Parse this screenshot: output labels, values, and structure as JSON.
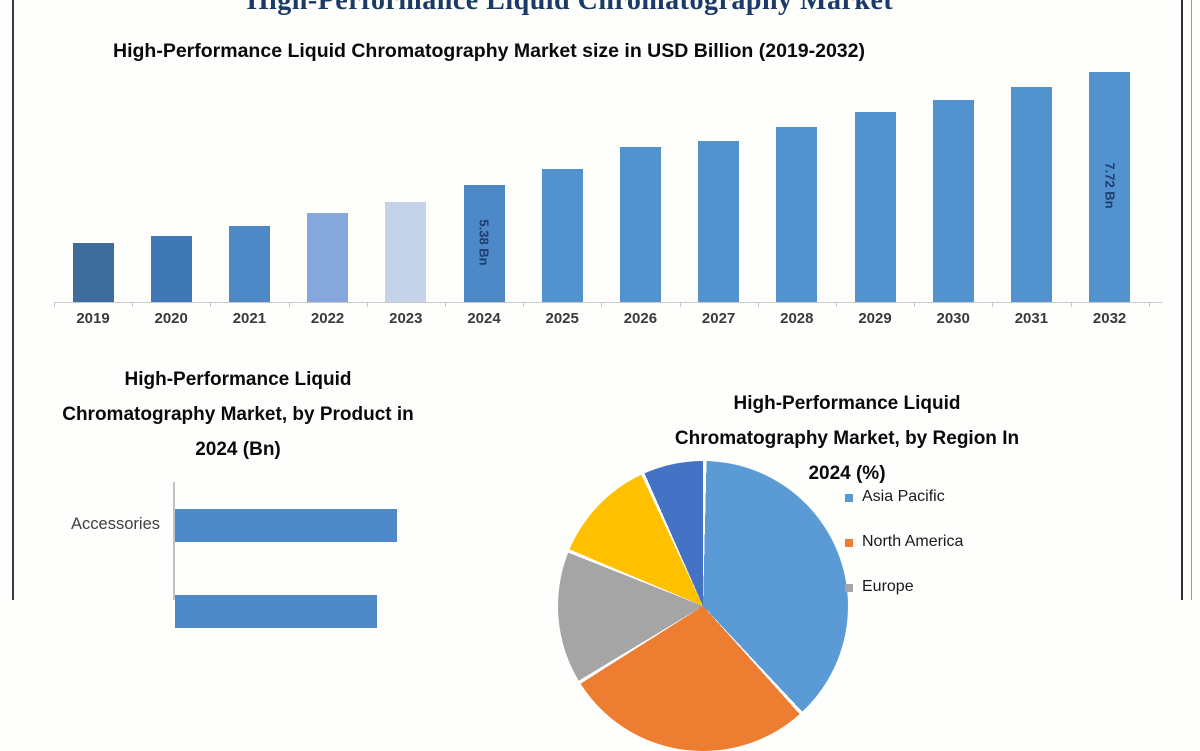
{
  "page": {
    "main_heading": "High-Performance Liquid Chromatography Market"
  },
  "main_chart": {
    "title": "High-Performance Liquid Chromatography Market size in USD Billion (2019-2032)"
  },
  "product_chart": {
    "title_line1": "High-Performance Liquid",
    "title_line2": "Chromatography Market, by Product in",
    "title_line3": "2024 (Bn)",
    "category_label": "Accessories"
  },
  "region_chart": {
    "title_line1": "High-Performance Liquid",
    "title_line2": "Chromatography Market, by Region In",
    "title_line3": "2024 (%)"
  },
  "chart_data": [
    {
      "type": "bar",
      "title": "High-Performance Liquid Chromatography Market size in USD Billion (2019-2032)",
      "categories": [
        "2019",
        "2020",
        "2021",
        "2022",
        "2023",
        "2024",
        "2025",
        "2026",
        "2027",
        "2028",
        "2029",
        "2030",
        "2031",
        "2032"
      ],
      "values": [
        4.18,
        4.32,
        4.53,
        4.8,
        5.03,
        5.38,
        5.71,
        6.16,
        6.29,
        6.58,
        6.89,
        7.14,
        7.41,
        7.72
      ],
      "unit": "USD Billion",
      "bar_labels": {
        "2024": "5.38 Bn",
        "2032": "7.72 Bn"
      },
      "bar_colors": [
        "#3e6d9c",
        "#4078b5",
        "#4d88c7",
        "#85a8db",
        "#c5d3ea",
        "#4d88c7",
        "#5292cf",
        "#5292cf",
        "#5292cf",
        "#5292cf",
        "#5292cf",
        "#5292cf",
        "#5292cf",
        "#5292cf"
      ],
      "ylim": [
        2.96,
        8.0
      ],
      "grid": false,
      "legend": "none"
    },
    {
      "type": "bar",
      "orientation": "horizontal",
      "title": "High-Performance Liquid Chromatography Market, by Product in 2024 (Bn)",
      "categories": [
        "Accessories",
        ""
      ],
      "values": [
        2.2,
        2.0
      ],
      "unit": "Bn",
      "bar_color": "#4e8ac9",
      "note_values_estimated": true
    },
    {
      "type": "pie",
      "title": "High-Performance Liquid Chromatography Market, by Region In 2024 (%)",
      "segments": [
        {
          "label": "Asia Pacific",
          "value": 38,
          "color": "#5b9bd5"
        },
        {
          "label": "North America",
          "value": 28,
          "color": "#ed7d31"
        },
        {
          "label": "Europe",
          "value": 15,
          "color": "#a5a5a5"
        },
        {
          "label": "",
          "value": 12,
          "color": "#ffc000"
        },
        {
          "label": "",
          "value": 7,
          "color": "#4472c4"
        }
      ],
      "legend_visible": [
        "Asia Pacific",
        "North America",
        "Europe"
      ],
      "legend_position": "right"
    }
  ]
}
